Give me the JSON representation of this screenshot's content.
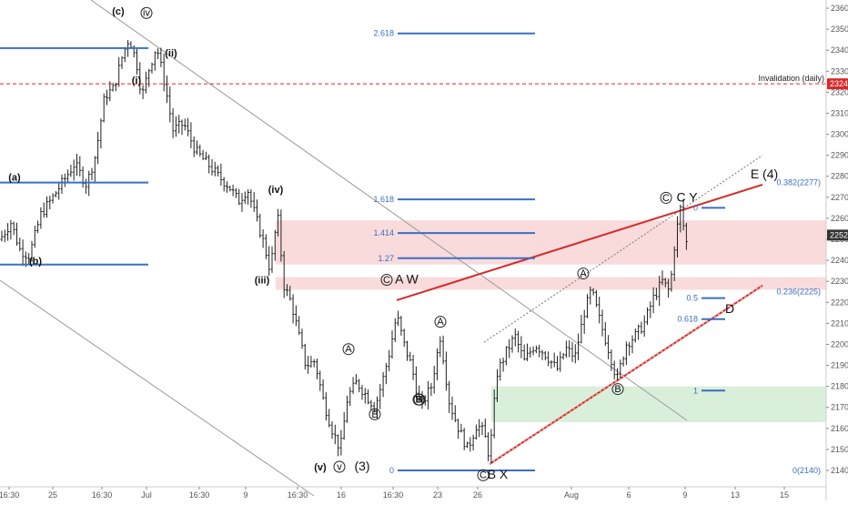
{
  "chart_data": {
    "type": "candlestick",
    "title": "",
    "xlabel": "",
    "ylabel": "",
    "ylim": [
      2133,
      2363
    ],
    "y_ticks": [
      2140,
      2150,
      2160,
      2170,
      2180,
      2190,
      2200,
      2210,
      2220,
      2230,
      2240,
      2250,
      2260,
      2270,
      2280,
      2290,
      2300,
      2310,
      2320,
      2330,
      2340,
      2350,
      2360
    ],
    "x_ticks": [
      "16:30",
      "25",
      "16:30",
      "Jul",
      "16:30",
      "9",
      "16:30",
      "16",
      "16:30",
      "23",
      "26",
      "Aug",
      "6",
      "9",
      "13",
      "15"
    ],
    "last_price": "2252",
    "invalidation": {
      "label": "Invalidation (daily)",
      "value": 2324,
      "tag": "2324"
    },
    "fib_extension": [
      {
        "label": "2.618",
        "value": 2348
      },
      {
        "label": "1.618",
        "value": 2269
      },
      {
        "label": "1.414",
        "value": 2253
      },
      {
        "label": "1.27",
        "value": 2241
      },
      {
        "label": "0",
        "value": 2140
      }
    ],
    "fib_retrace_right": [
      {
        "label": "0",
        "value": 2265
      },
      {
        "label": "0.5",
        "value": 2222
      },
      {
        "label": "0.618",
        "value": 2212
      },
      {
        "label": "1",
        "value": 2178
      }
    ],
    "fib_axis_labels": [
      {
        "label": "0.382(2277)",
        "value": 2277
      },
      {
        "label": "0.236(2225)",
        "value": 2225
      },
      {
        "label": "0(2140)",
        "value": 2140
      }
    ],
    "left_levels": [
      2341,
      2277,
      2238
    ],
    "zones": [
      {
        "name": "red-upper",
        "from": 2238,
        "to": 2259
      },
      {
        "name": "red-lower",
        "from": 2226,
        "to": 2232
      },
      {
        "name": "green",
        "from": 2163,
        "to": 2180
      }
    ],
    "wave_labels": [
      {
        "text": "(c)"
      },
      {
        "text": "iv"
      },
      {
        "text": "(ii)"
      },
      {
        "text": "(i)"
      },
      {
        "text": "(a)"
      },
      {
        "text": "(b)"
      },
      {
        "text": "(iv)"
      },
      {
        "text": "(iii)"
      },
      {
        "text": "(v)"
      },
      {
        "text": "v"
      },
      {
        "text": "(3)"
      },
      {
        "text": "A"
      },
      {
        "text": "B"
      },
      {
        "text": "B"
      },
      {
        "text": "A"
      },
      {
        "text": "B"
      },
      {
        "text": "A"
      },
      {
        "text": "B"
      },
      {
        "text": "C"
      },
      {
        "text": "A W"
      },
      {
        "text": "C"
      },
      {
        "text": "B X"
      },
      {
        "text": "C"
      },
      {
        "text": "C Y"
      },
      {
        "text": "E (4)"
      },
      {
        "text": "D"
      }
    ]
  }
}
